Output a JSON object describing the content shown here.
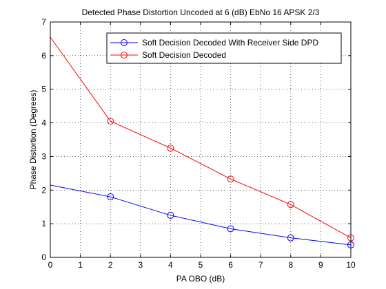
{
  "chart_data": {
    "type": "line",
    "title": "Detected Phase Distortion Uncoded at 6 (dB) EbNo 16 APSK 2/3",
    "xlabel": "PA OBO (dB)",
    "ylabel": "Phase Distortion (Degrees)",
    "xlim": [
      0,
      10
    ],
    "ylim": [
      0,
      7
    ],
    "xticks": [
      "0",
      "1",
      "2",
      "3",
      "4",
      "5",
      "6",
      "7",
      "8",
      "9",
      "10"
    ],
    "yticks": [
      "0",
      "1",
      "2",
      "3",
      "4",
      "5",
      "6",
      "7"
    ],
    "grid": true,
    "legend_position": "top-right",
    "series": [
      {
        "name": "Soft Decision Decoded With Receiver Side DPD",
        "color": "#0000ff",
        "marker": "circle",
        "x": [
          0,
          2,
          4,
          6,
          8,
          10
        ],
        "y": [
          2.15,
          1.8,
          1.25,
          0.85,
          0.58,
          0.37
        ],
        "marker_mask": [
          false,
          true,
          true,
          true,
          true,
          true
        ]
      },
      {
        "name": "Soft Decision Decoded",
        "color": "#ff0000",
        "marker": "circle",
        "x": [
          0,
          2,
          4,
          6,
          8,
          10
        ],
        "y": [
          6.55,
          4.05,
          3.25,
          2.33,
          1.57,
          0.58
        ],
        "marker_mask": [
          false,
          true,
          true,
          true,
          true,
          true
        ]
      }
    ]
  }
}
